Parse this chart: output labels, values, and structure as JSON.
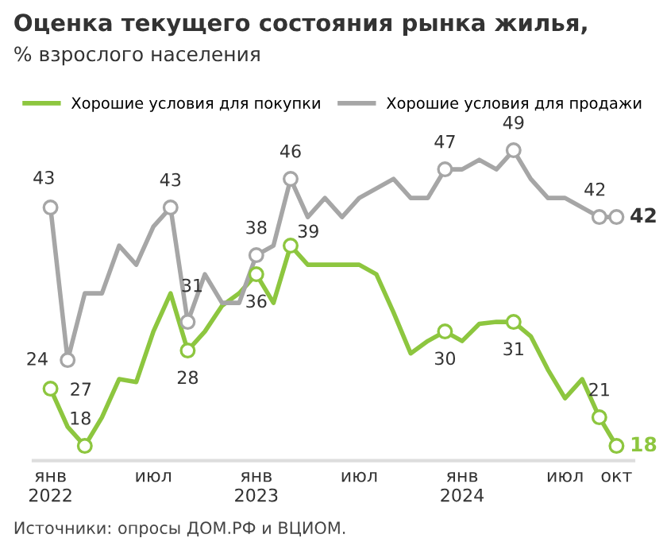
{
  "chart_data": {
    "type": "line",
    "title": "Оценка текущего состояния рынка жилья,",
    "subtitle": "% взрослого населения",
    "x": [
      "2022-01",
      "2022-02",
      "2022-03",
      "2022-04",
      "2022-05",
      "2022-06",
      "2022-07",
      "2022-08",
      "2022-09",
      "2022-10",
      "2022-11",
      "2022-12",
      "2023-01",
      "2023-02",
      "2023-03",
      "2023-04",
      "2023-05",
      "2023-06",
      "2023-07",
      "2023-08",
      "2023-09",
      "2023-10",
      "2023-11",
      "2023-12",
      "2024-01",
      "2024-02",
      "2024-03",
      "2024-04",
      "2024-05",
      "2024-06",
      "2024-07",
      "2024-08",
      "2024-09",
      "2024-10"
    ],
    "series": [
      {
        "name": "Хорошие условия для покупки",
        "color": "#8dc63f",
        "values": [
          24,
          20,
          18,
          21,
          25,
          24.7,
          30,
          34,
          28,
          30,
          32.7,
          34,
          36,
          33,
          39,
          37,
          37,
          37,
          37,
          36,
          32,
          27.7,
          29,
          30,
          29,
          30.8,
          31,
          31,
          29.5,
          26,
          23,
          25,
          21,
          18
        ],
        "value_labels": [
          "24",
          null,
          "18",
          null,
          null,
          null,
          null,
          null,
          "28",
          null,
          null,
          null,
          "36",
          null,
          "39",
          null,
          null,
          null,
          null,
          null,
          null,
          null,
          null,
          "30",
          null,
          null,
          null,
          "31",
          null,
          null,
          null,
          null,
          "21",
          "18"
        ]
      },
      {
        "name": "Хорошие условия для продажи",
        "color": "#a6a6a6",
        "values": [
          43,
          27,
          34,
          34,
          39,
          37,
          41,
          43,
          31,
          36,
          33,
          33,
          38,
          39,
          46,
          42,
          44,
          42,
          44,
          45,
          46,
          44,
          44,
          47,
          47,
          48,
          47,
          49,
          46,
          44,
          44,
          43,
          42,
          42
        ],
        "value_labels": [
          "43",
          "27",
          null,
          null,
          null,
          null,
          null,
          "43",
          "31",
          null,
          null,
          null,
          "38",
          null,
          "46",
          null,
          null,
          null,
          null,
          null,
          null,
          null,
          null,
          "47",
          null,
          null,
          null,
          "49",
          null,
          null,
          null,
          null,
          "42",
          "42"
        ]
      }
    ],
    "xlim": [
      "2021-12",
      "2024-11"
    ],
    "xticks": [
      {
        "value": "2022-01",
        "label": "янв\n2022"
      },
      {
        "value": "2022-07",
        "label": "июл"
      },
      {
        "value": "2023-01",
        "label": "янв\n2023"
      },
      {
        "value": "2023-07",
        "label": "июл"
      },
      {
        "value": "2024-01",
        "label": "янв\n2024"
      },
      {
        "value": "2024-07",
        "label": "июл"
      },
      {
        "value": "2024-10",
        "label": "окт"
      }
    ],
    "tick_labels": "x",
    "grid": false,
    "legend": "top",
    "line_style": "solid",
    "annotations": [
      "Источники: опросы ДОМ.РФ и ВЦИОМ."
    ]
  }
}
